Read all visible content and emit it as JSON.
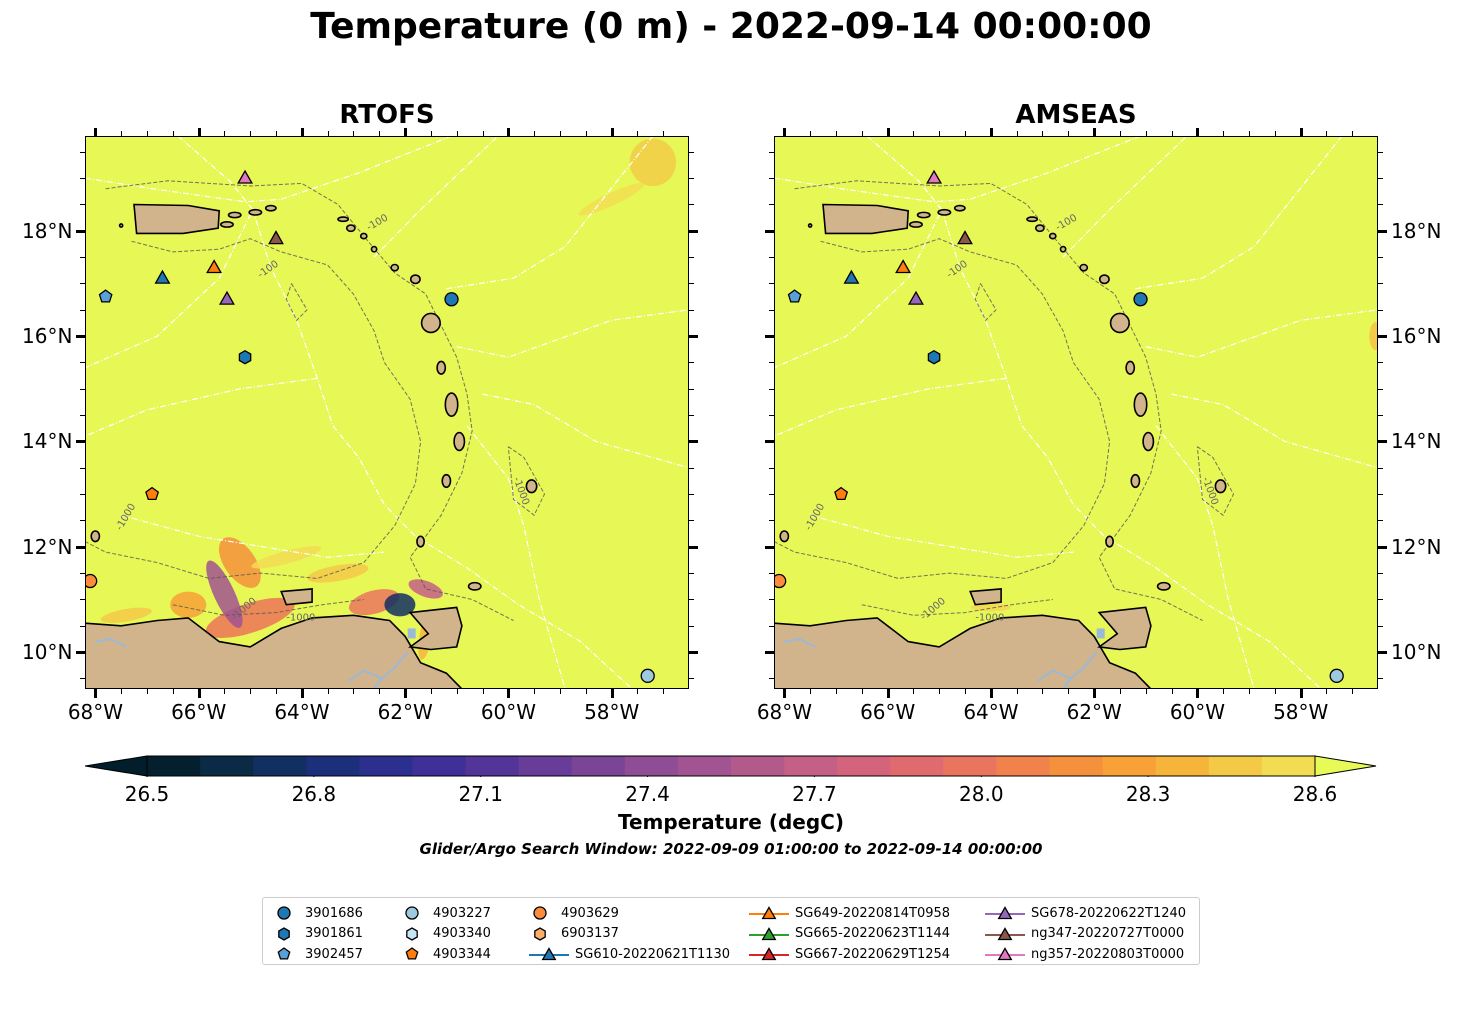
{
  "title": "Temperature (0 m) - 2022-09-14 00:00:00",
  "panels": [
    {
      "title": "RTOFS",
      "key": "rtofs"
    },
    {
      "title": "AMSEAS",
      "key": "amseas"
    }
  ],
  "map": {
    "lon_range": [
      -68.2,
      -56.5
    ],
    "lat_range": [
      9.3,
      19.8
    ],
    "x_ticks": [
      {
        "value": -68,
        "label": "68°W"
      },
      {
        "value": -66,
        "label": "66°W"
      },
      {
        "value": -64,
        "label": "64°W"
      },
      {
        "value": -62,
        "label": "62°W"
      },
      {
        "value": -60,
        "label": "60°W"
      },
      {
        "value": -58,
        "label": "58°W"
      }
    ],
    "y_ticks": [
      {
        "value": 18,
        "label": "18°N"
      },
      {
        "value": 16,
        "label": "16°N"
      },
      {
        "value": 14,
        "label": "14°N"
      },
      {
        "value": 12,
        "label": "12°N"
      },
      {
        "value": 10,
        "label": "10°N"
      }
    ],
    "contour_labels": [
      {
        "text": "-100",
        "lon": -64.8,
        "lat": 17.1,
        "rot": -35
      },
      {
        "text": "-1000",
        "lon": -65.3,
        "lat": 10.6,
        "rot": -40
      },
      {
        "text": "-1000",
        "lon": -64.3,
        "lat": 10.6,
        "rot": 0
      },
      {
        "text": "-1000",
        "lon": -59.9,
        "lat": 13.3,
        "rot": 70
      },
      {
        "text": "-1000",
        "lon": -67.5,
        "lat": 12.3,
        "rot": -60
      },
      {
        "text": "-100",
        "lon": -62.7,
        "lat": 18.0,
        "rot": -30
      }
    ],
    "colors": {
      "ocean": "#e6f756",
      "land": "#d2b48c",
      "coast": "#000000",
      "river": "#9ab9d8",
      "eez": "#ffffff",
      "contour": "#555555"
    }
  },
  "colorbar": {
    "label": "Temperature (degC)",
    "min": 26.5,
    "max": 28.6,
    "ticks": [
      "26.5",
      "26.8",
      "27.1",
      "27.4",
      "27.7",
      "28.0",
      "28.3",
      "28.6"
    ],
    "colors": [
      "#04202f",
      "#0b2a45",
      "#122f62",
      "#1c2f7a",
      "#2b2f8e",
      "#3f2f98",
      "#53359a",
      "#673d99",
      "#7a4597",
      "#8e4d94",
      "#a15491",
      "#b35a8d",
      "#c45f86",
      "#d3647c",
      "#e06b6e",
      "#ea755e",
      "#f1824c",
      "#f5913d",
      "#f7a136",
      "#f7b43b",
      "#f4c946",
      "#f2dc52"
    ],
    "extend_low": "#031e2b",
    "extend_high": "#e8fa57"
  },
  "search_window": "Glider/Argo Search Window: 2022-09-09 01:00:00 to 2022-09-14 00:00:00",
  "platforms": [
    {
      "name": "3901686",
      "marker": "circle",
      "color": "#1f77b4",
      "lon": -61.1,
      "lat": 16.7
    },
    {
      "name": "3901861",
      "marker": "hexagon",
      "color": "#1f77b4",
      "lon": -65.1,
      "lat": 15.6
    },
    {
      "name": "3902457",
      "marker": "pentagon",
      "color": "#5aa0d8",
      "lon": -67.8,
      "lat": 16.75
    },
    {
      "name": "4903227",
      "marker": "circle",
      "color": "#9ecae1",
      "lon": -57.3,
      "lat": 9.55
    },
    {
      "name": "4903340",
      "marker": "hexagon",
      "color": "#c6e5f5",
      "lon": null,
      "lat": null
    },
    {
      "name": "4903344",
      "marker": "pentagon",
      "color": "#ff7f0e",
      "lon": -66.9,
      "lat": 13.0
    },
    {
      "name": "4903629",
      "marker": "circle",
      "color": "#fd8d3c",
      "lon": -68.1,
      "lat": 11.35
    },
    {
      "name": "6903137",
      "marker": "hexagon",
      "color": "#fdae6b",
      "lon": null,
      "lat": null
    },
    {
      "name": "SG610-20220621T1130",
      "marker": "triangle",
      "color": "#1f77b4",
      "lon": -66.7,
      "lat": 17.1
    },
    {
      "name": "SG649-20220814T0958",
      "marker": "triangle",
      "color": "#ff7f0e",
      "lon": -65.7,
      "lat": 17.3
    },
    {
      "name": "SG665-20220623T1144",
      "marker": "triangle",
      "color": "#2ca02c",
      "lon": null,
      "lat": null
    },
    {
      "name": "SG667-20220629T1254",
      "marker": "triangle",
      "color": "#d62728",
      "lon": null,
      "lat": null
    },
    {
      "name": "SG678-20220622T1240",
      "marker": "triangle",
      "color": "#9467bd",
      "lon": -65.45,
      "lat": 16.7
    },
    {
      "name": "ng347-20220727T0000",
      "marker": "triangle",
      "color": "#8c564b",
      "lon": -64.5,
      "lat": 17.85
    },
    {
      "name": "ng357-20220803T0000",
      "marker": "triangle",
      "color": "#e377c2",
      "lon": -65.1,
      "lat": 19.0
    }
  ]
}
